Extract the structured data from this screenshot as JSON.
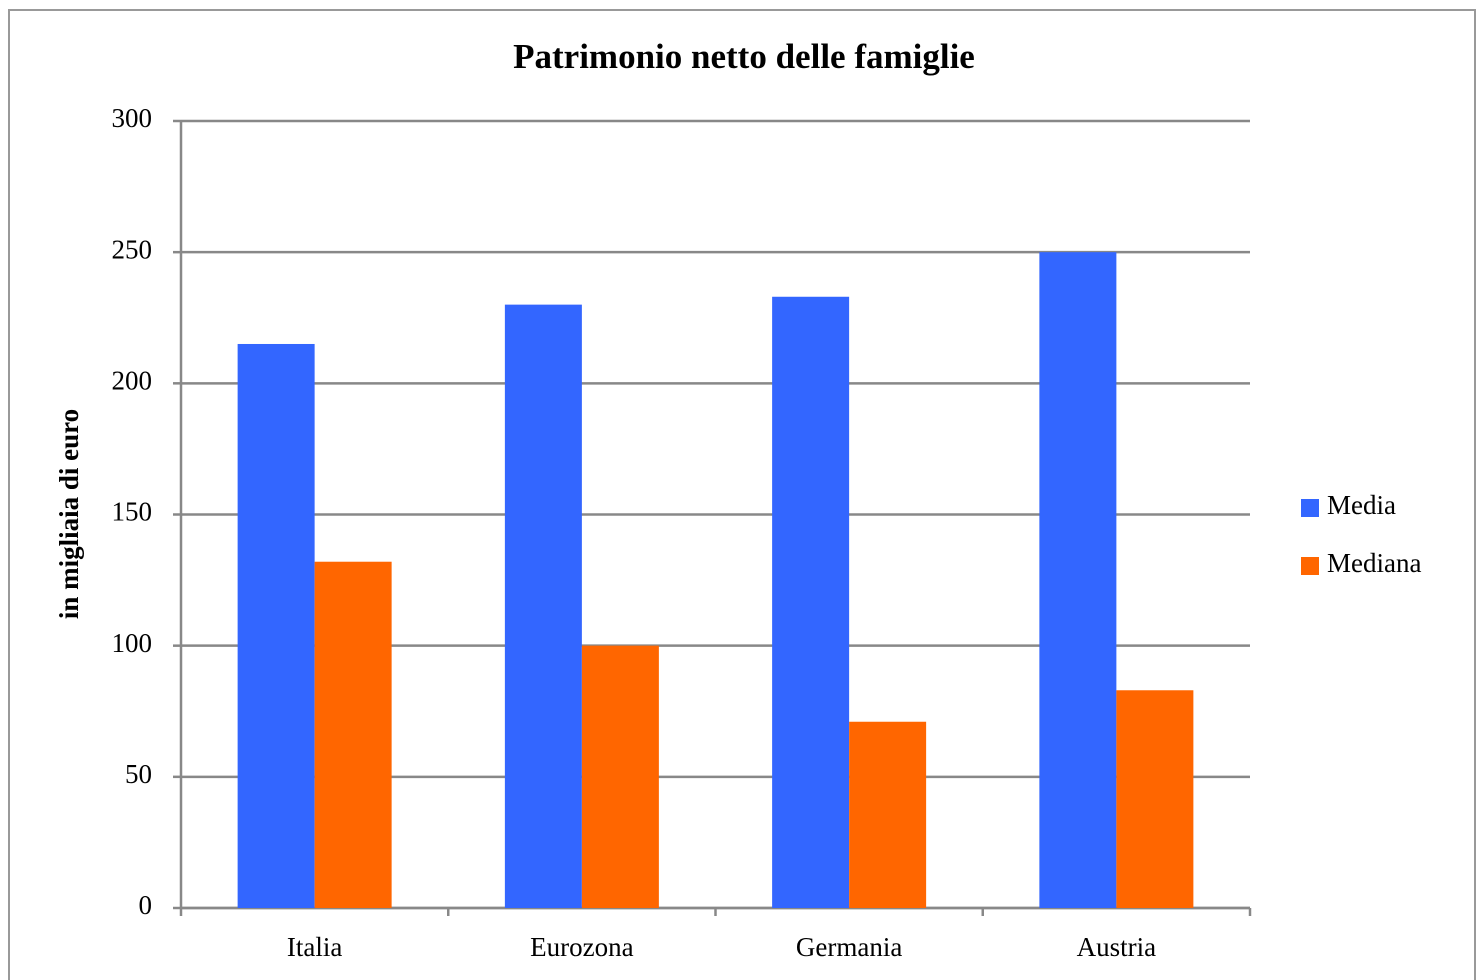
{
  "chart_data": {
    "type": "bar",
    "title": "Patrimonio netto delle famiglie",
    "y_label": "in migliaia di euro",
    "categories": [
      "Italia",
      "Eurozona",
      "Germania",
      "Austria"
    ],
    "series": [
      {
        "name": "Media",
        "color": "#3366ff",
        "values": [
          215,
          230,
          233,
          250
        ]
      },
      {
        "name": "Mediana",
        "color": "#ff6600",
        "values": [
          132,
          100,
          71,
          83
        ]
      }
    ],
    "ylim": [
      0,
      300
    ],
    "yticks": [
      0,
      50,
      100,
      150,
      200,
      250,
      300
    ],
    "grid": true,
    "legend": "right"
  }
}
